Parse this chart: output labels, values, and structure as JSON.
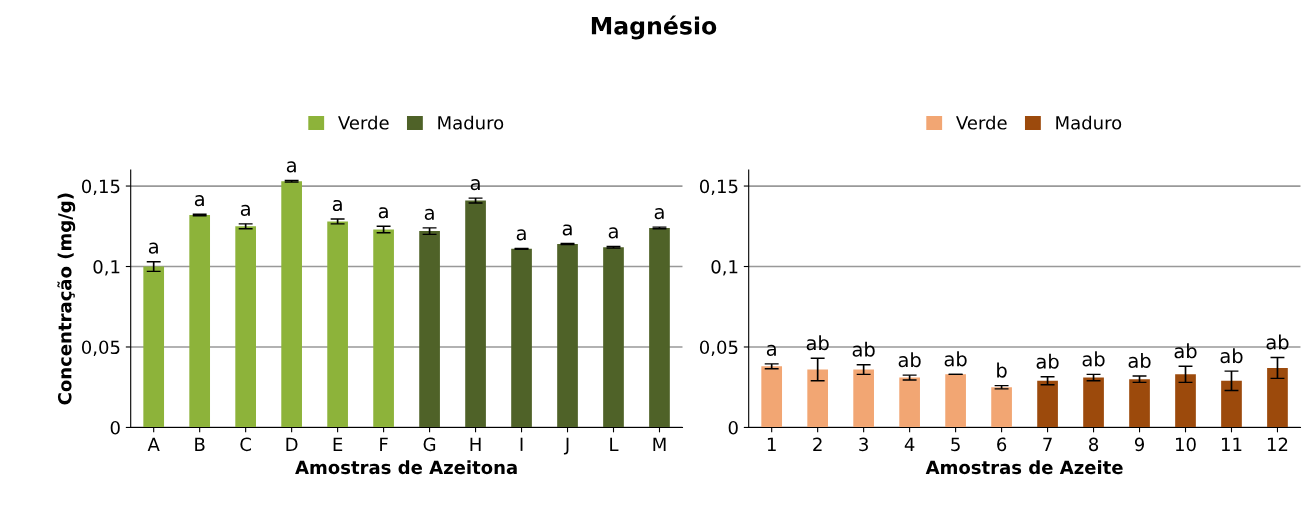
{
  "chart_data": [
    {
      "type": "bar",
      "title": "Magnésio",
      "xlabel": "Amostras de Azeitona",
      "ylabel": "Concentração (mg/g)",
      "categories": [
        "A",
        "B",
        "C",
        "D",
        "E",
        "F",
        "G",
        "H",
        "I",
        "J",
        "L",
        "M"
      ],
      "series": [
        {
          "name": "Verde",
          "color": "#8db33a",
          "values": [
            0.1,
            0.132,
            0.125,
            0.153,
            0.128,
            0.123,
            null,
            null,
            null,
            null,
            null,
            null
          ],
          "errors": [
            0.003,
            0.0005,
            0.0015,
            0.0005,
            0.0015,
            0.002,
            null,
            null,
            null,
            null,
            null,
            null
          ],
          "value_labels": [
            "a",
            "a",
            "a",
            "a",
            "a",
            "a",
            null,
            null,
            null,
            null,
            null,
            null
          ]
        },
        {
          "name": "Maduro",
          "color": "#4f6228",
          "values": [
            null,
            null,
            null,
            null,
            null,
            null,
            0.122,
            0.141,
            0.111,
            0.114,
            0.112,
            0.124
          ],
          "errors": [
            null,
            null,
            null,
            null,
            null,
            null,
            0.002,
            0.0015,
            0.0003,
            0.0003,
            0.0005,
            0.0005
          ],
          "value_labels": [
            null,
            null,
            null,
            null,
            null,
            null,
            "a",
            "a",
            "a",
            "a",
            "a",
            "a"
          ]
        }
      ],
      "ylim": [
        0,
        0.16
      ],
      "yticks": [
        {
          "value": 0,
          "label": "0"
        },
        {
          "value": 0.05,
          "label": "0,05"
        },
        {
          "value": 0.1,
          "label": "0,1"
        },
        {
          "value": 0.15,
          "label": "0,15"
        }
      ],
      "grid": "y",
      "legend": "top"
    },
    {
      "type": "bar",
      "xlabel": "Amostras de Azeite",
      "categories": [
        "1",
        "2",
        "3",
        "4",
        "5",
        "6",
        "7",
        "8",
        "9",
        "10",
        "11",
        "12"
      ],
      "series": [
        {
          "name": "Verde",
          "color": "#f2a673",
          "values": [
            0.038,
            0.036,
            0.036,
            0.031,
            0.033,
            0.025,
            null,
            null,
            null,
            null,
            null,
            null
          ],
          "errors": [
            0.0015,
            0.007,
            0.003,
            0.0015,
            0,
            0.001,
            null,
            null,
            null,
            null,
            null,
            null
          ],
          "value_labels": [
            "a",
            "ab",
            "ab",
            "ab",
            "ab",
            "b",
            null,
            null,
            null,
            null,
            null,
            null
          ]
        },
        {
          "name": "Maduro",
          "color": "#9c4a0c",
          "values": [
            null,
            null,
            null,
            null,
            null,
            null,
            0.029,
            0.031,
            0.03,
            0.033,
            0.029,
            0.037
          ],
          "errors": [
            null,
            null,
            null,
            null,
            null,
            null,
            0.0025,
            0.002,
            0.002,
            0.005,
            0.006,
            0.0065
          ],
          "value_labels": [
            null,
            null,
            null,
            null,
            null,
            null,
            "ab",
            "ab",
            "ab",
            "ab",
            "ab",
            "ab"
          ]
        }
      ],
      "ylim": [
        0,
        0.16
      ],
      "yticks": [
        {
          "value": 0,
          "label": "0"
        },
        {
          "value": 0.05,
          "label": "0,05"
        },
        {
          "value": 0.1,
          "label": "0,1"
        },
        {
          "value": 0.15,
          "label": "0,15"
        }
      ],
      "grid": "y",
      "legend": "top"
    }
  ]
}
